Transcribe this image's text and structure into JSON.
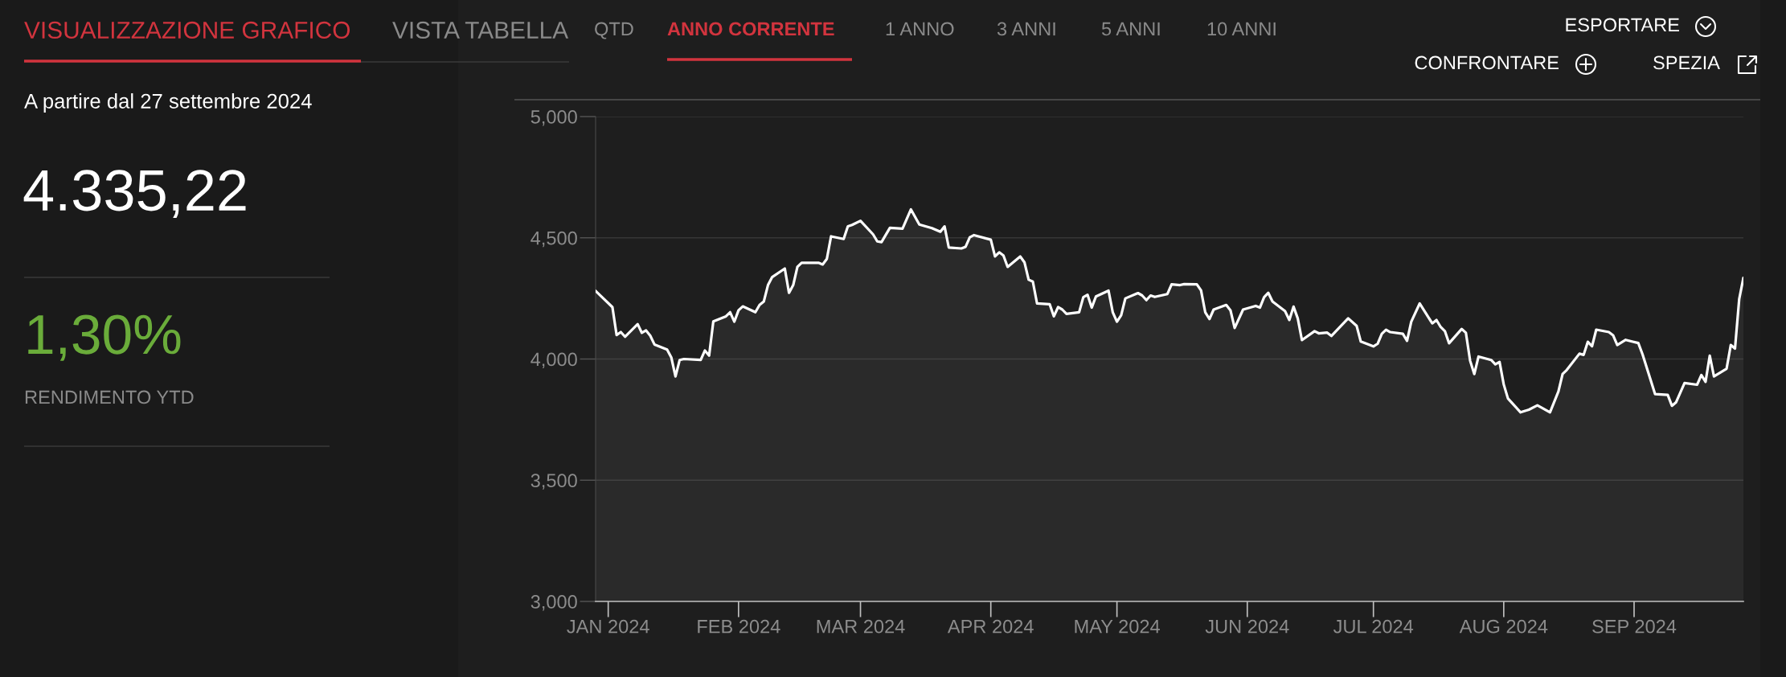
{
  "chart_data": {
    "type": "area",
    "x": [
      "2023-12-29",
      "2024-01-02",
      "2024-01-03",
      "2024-01-04",
      "2024-01-05",
      "2024-01-08",
      "2024-01-09",
      "2024-01-10",
      "2024-01-11",
      "2024-01-12",
      "2024-01-15",
      "2024-01-16",
      "2024-01-17",
      "2024-01-18",
      "2024-01-19",
      "2024-01-23",
      "2024-01-24",
      "2024-01-25",
      "2024-01-26",
      "2024-01-29",
      "2024-01-30",
      "2024-01-31",
      "2024-02-01",
      "2024-02-02",
      "2024-02-05",
      "2024-02-06",
      "2024-02-07",
      "2024-02-08",
      "2024-02-09",
      "2024-02-12",
      "2024-02-13",
      "2024-02-14",
      "2024-02-15",
      "2024-02-16",
      "2024-02-20",
      "2024-02-21",
      "2024-02-22",
      "2024-02-23",
      "2024-02-26",
      "2024-02-27",
      "2024-02-28",
      "2024-03-01",
      "2024-03-04",
      "2024-03-05",
      "2024-03-06",
      "2024-03-08",
      "2024-03-11",
      "2024-03-13",
      "2024-03-15",
      "2024-03-18",
      "2024-03-20",
      "2024-03-21",
      "2024-03-22",
      "2024-03-25",
      "2024-03-26",
      "2024-03-27",
      "2024-03-28",
      "2024-04-01",
      "2024-04-02",
      "2024-04-03",
      "2024-04-04",
      "2024-04-05",
      "2024-04-08",
      "2024-04-09",
      "2024-04-10",
      "2024-04-11",
      "2024-04-12",
      "2024-04-15",
      "2024-04-16",
      "2024-04-17",
      "2024-04-18",
      "2024-04-19",
      "2024-04-22",
      "2024-04-23",
      "2024-04-24",
      "2024-04-25",
      "2024-04-26",
      "2024-04-29",
      "2024-04-30",
      "2024-05-01",
      "2024-05-02",
      "2024-05-03",
      "2024-05-06",
      "2024-05-07",
      "2024-05-08",
      "2024-05-09",
      "2024-05-10",
      "2024-05-13",
      "2024-05-14",
      "2024-05-16",
      "2024-05-17",
      "2024-05-20",
      "2024-05-21",
      "2024-05-22",
      "2024-05-23",
      "2024-05-24",
      "2024-05-27",
      "2024-05-28",
      "2024-05-29",
      "2024-05-31",
      "2024-06-03",
      "2024-06-04",
      "2024-06-05",
      "2024-06-06",
      "2024-06-07",
      "2024-06-10",
      "2024-06-11",
      "2024-06-12",
      "2024-06-13",
      "2024-06-14",
      "2024-06-17",
      "2024-06-18",
      "2024-06-20",
      "2024-06-21",
      "2024-06-25",
      "2024-06-27",
      "2024-06-28",
      "2024-07-01",
      "2024-07-02",
      "2024-07-03",
      "2024-07-04",
      "2024-07-05",
      "2024-07-08",
      "2024-07-09",
      "2024-07-10",
      "2024-07-12",
      "2024-07-15",
      "2024-07-16",
      "2024-07-17",
      "2024-07-18",
      "2024-07-19",
      "2024-07-22",
      "2024-07-23",
      "2024-07-24",
      "2024-07-25",
      "2024-07-26",
      "2024-07-29",
      "2024-07-30",
      "2024-07-31",
      "2024-08-01",
      "2024-08-02",
      "2024-08-05",
      "2024-08-07",
      "2024-08-09",
      "2024-08-12",
      "2024-08-14",
      "2024-08-15",
      "2024-08-16",
      "2024-08-19",
      "2024-08-20",
      "2024-08-21",
      "2024-08-22",
      "2024-08-23",
      "2024-08-26",
      "2024-08-27",
      "2024-08-28",
      "2024-08-30",
      "2024-09-02",
      "2024-09-03",
      "2024-09-06",
      "2024-09-09",
      "2024-09-10",
      "2024-09-11",
      "2024-09-13",
      "2024-09-16",
      "2024-09-17",
      "2024-09-18",
      "2024-09-19",
      "2024-09-20",
      "2024-09-23",
      "2024-09-24",
      "2024-09-25",
      "2024-09-26",
      "2024-09-27"
    ],
    "series": [
      {
        "color": "#ffffff",
        "values": [
          4281,
          4214,
          4099,
          4111,
          4092,
          4144,
          4108,
          4118,
          4096,
          4060,
          4039,
          4007,
          3928,
          3996,
          4000,
          3996,
          4035,
          4014,
          4155,
          4176,
          4193,
          4154,
          4201,
          4217,
          4193,
          4223,
          4237,
          4305,
          4338,
          4373,
          4273,
          4305,
          4380,
          4397,
          4397,
          4390,
          4413,
          4506,
          4495,
          4547,
          4553,
          4570,
          4514,
          4485,
          4482,
          4541,
          4538,
          4617,
          4555,
          4540,
          4525,
          4547,
          4460,
          4456,
          4463,
          4502,
          4511,
          4492,
          4423,
          4440,
          4427,
          4380,
          4423,
          4399,
          4327,
          4319,
          4229,
          4226,
          4176,
          4214,
          4204,
          4186,
          4193,
          4255,
          4265,
          4212,
          4258,
          4282,
          4193,
          4154,
          4180,
          4250,
          4272,
          4262,
          4243,
          4262,
          4256,
          4268,
          4308,
          4305,
          4309,
          4308,
          4283,
          4193,
          4165,
          4204,
          4223,
          4201,
          4128,
          4204,
          4219,
          4212,
          4255,
          4273,
          4237,
          4197,
          4161,
          4216,
          4168,
          4078,
          4115,
          4106,
          4109,
          4095,
          4168,
          4137,
          4072,
          4052,
          4063,
          4104,
          4121,
          4111,
          4104,
          4075,
          4154,
          4229,
          4147,
          4161,
          4132,
          4115,
          4065,
          4124,
          4108,
          3993,
          3938,
          4010,
          3996,
          3978,
          3988,
          3895,
          3837,
          3780,
          3791,
          3809,
          3780,
          3866,
          3938,
          3955,
          4022,
          4017,
          4071,
          4053,
          4121,
          4111,
          4098,
          4058,
          4079,
          4066,
          4020,
          3855,
          3852,
          3807,
          3822,
          3901,
          3894,
          3934,
          3906,
          4014,
          3928,
          3960,
          4058,
          4043,
          4247,
          4335
        ]
      }
    ],
    "xlim": [
      "2023-12-29",
      "2024-09-27"
    ],
    "xticks": [
      {
        "value": "2024-01-01",
        "label": "JAN 2024"
      },
      {
        "value": "2024-02-01",
        "label": "FEB 2024"
      },
      {
        "value": "2024-03-01",
        "label": "MAR 2024"
      },
      {
        "value": "2024-04-01",
        "label": "APR 2024"
      },
      {
        "value": "2024-05-01",
        "label": "MAY 2024"
      },
      {
        "value": "2024-06-01",
        "label": "JUN 2024"
      },
      {
        "value": "2024-07-01",
        "label": "JUL 2024"
      },
      {
        "value": "2024-08-01",
        "label": "AUG 2024"
      },
      {
        "value": "2024-09-01",
        "label": "SEP 2024"
      }
    ],
    "ylim": [
      3000,
      5000
    ],
    "yticks": [
      {
        "value": 3000,
        "label": "3,000"
      },
      {
        "value": 3500,
        "label": "3,500"
      },
      {
        "value": 4000,
        "label": "4,000"
      },
      {
        "value": 4500,
        "label": "4,500"
      },
      {
        "value": 5000,
        "label": "5,000"
      }
    ],
    "grid": "y",
    "annotations": [
      "VISUALIZZAZIONE GRAFICO",
      "VISTA TABELLA",
      "QTD",
      "ANNO CORRENTE",
      "1 ANNO",
      "3 ANNI",
      "5 ANNI",
      "10 ANNI",
      "ESPORTARE",
      "CONFRONTARE",
      "SPEZIA",
      "A partire dal 27 settembre 2024",
      "4.335,22",
      "1,30%",
      "RENDIMENTO YTD"
    ]
  }
}
